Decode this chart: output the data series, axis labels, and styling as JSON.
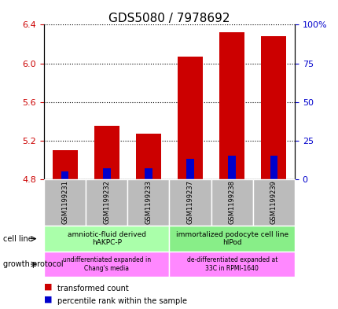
{
  "title": "GDS5080 / 7978692",
  "samples": [
    "GSM1199231",
    "GSM1199232",
    "GSM1199233",
    "GSM1199237",
    "GSM1199238",
    "GSM1199239"
  ],
  "transformed_counts": [
    5.1,
    5.35,
    5.27,
    6.07,
    6.32,
    6.28
  ],
  "percentile_ranks": [
    5,
    7,
    7,
    13,
    15,
    15
  ],
  "bar_base": 4.8,
  "ylim_left": [
    4.8,
    6.4
  ],
  "ylim_right": [
    0,
    100
  ],
  "yticks_left": [
    4.8,
    5.2,
    5.6,
    6.0,
    6.4
  ],
  "yticks_right": [
    0,
    25,
    50,
    75,
    100
  ],
  "ytick_labels_right": [
    "0",
    "25",
    "50",
    "75",
    "100%"
  ],
  "bar_color": "#cc0000",
  "percentile_color": "#0000cc",
  "cell_line_labels": [
    "amniotic-fluid derived\nhAKPC-P",
    "immortalized podocyte cell line\nhIPod"
  ],
  "cell_line_colors": [
    "#aaffaa",
    "#88ee88"
  ],
  "growth_protocol_labels": [
    "undifferentiated expanded in\nChang's media",
    "de-differentiated expanded at\n33C in RPMI-1640"
  ],
  "growth_protocol_color": "#ff88ff",
  "sample_label_bg": "#bbbbbb",
  "group1_samples": [
    0,
    1,
    2
  ],
  "group2_samples": [
    3,
    4,
    5
  ],
  "bar_width": 0.6,
  "left_ylabel_color": "#cc0000",
  "right_ylabel_color": "#0000cc"
}
